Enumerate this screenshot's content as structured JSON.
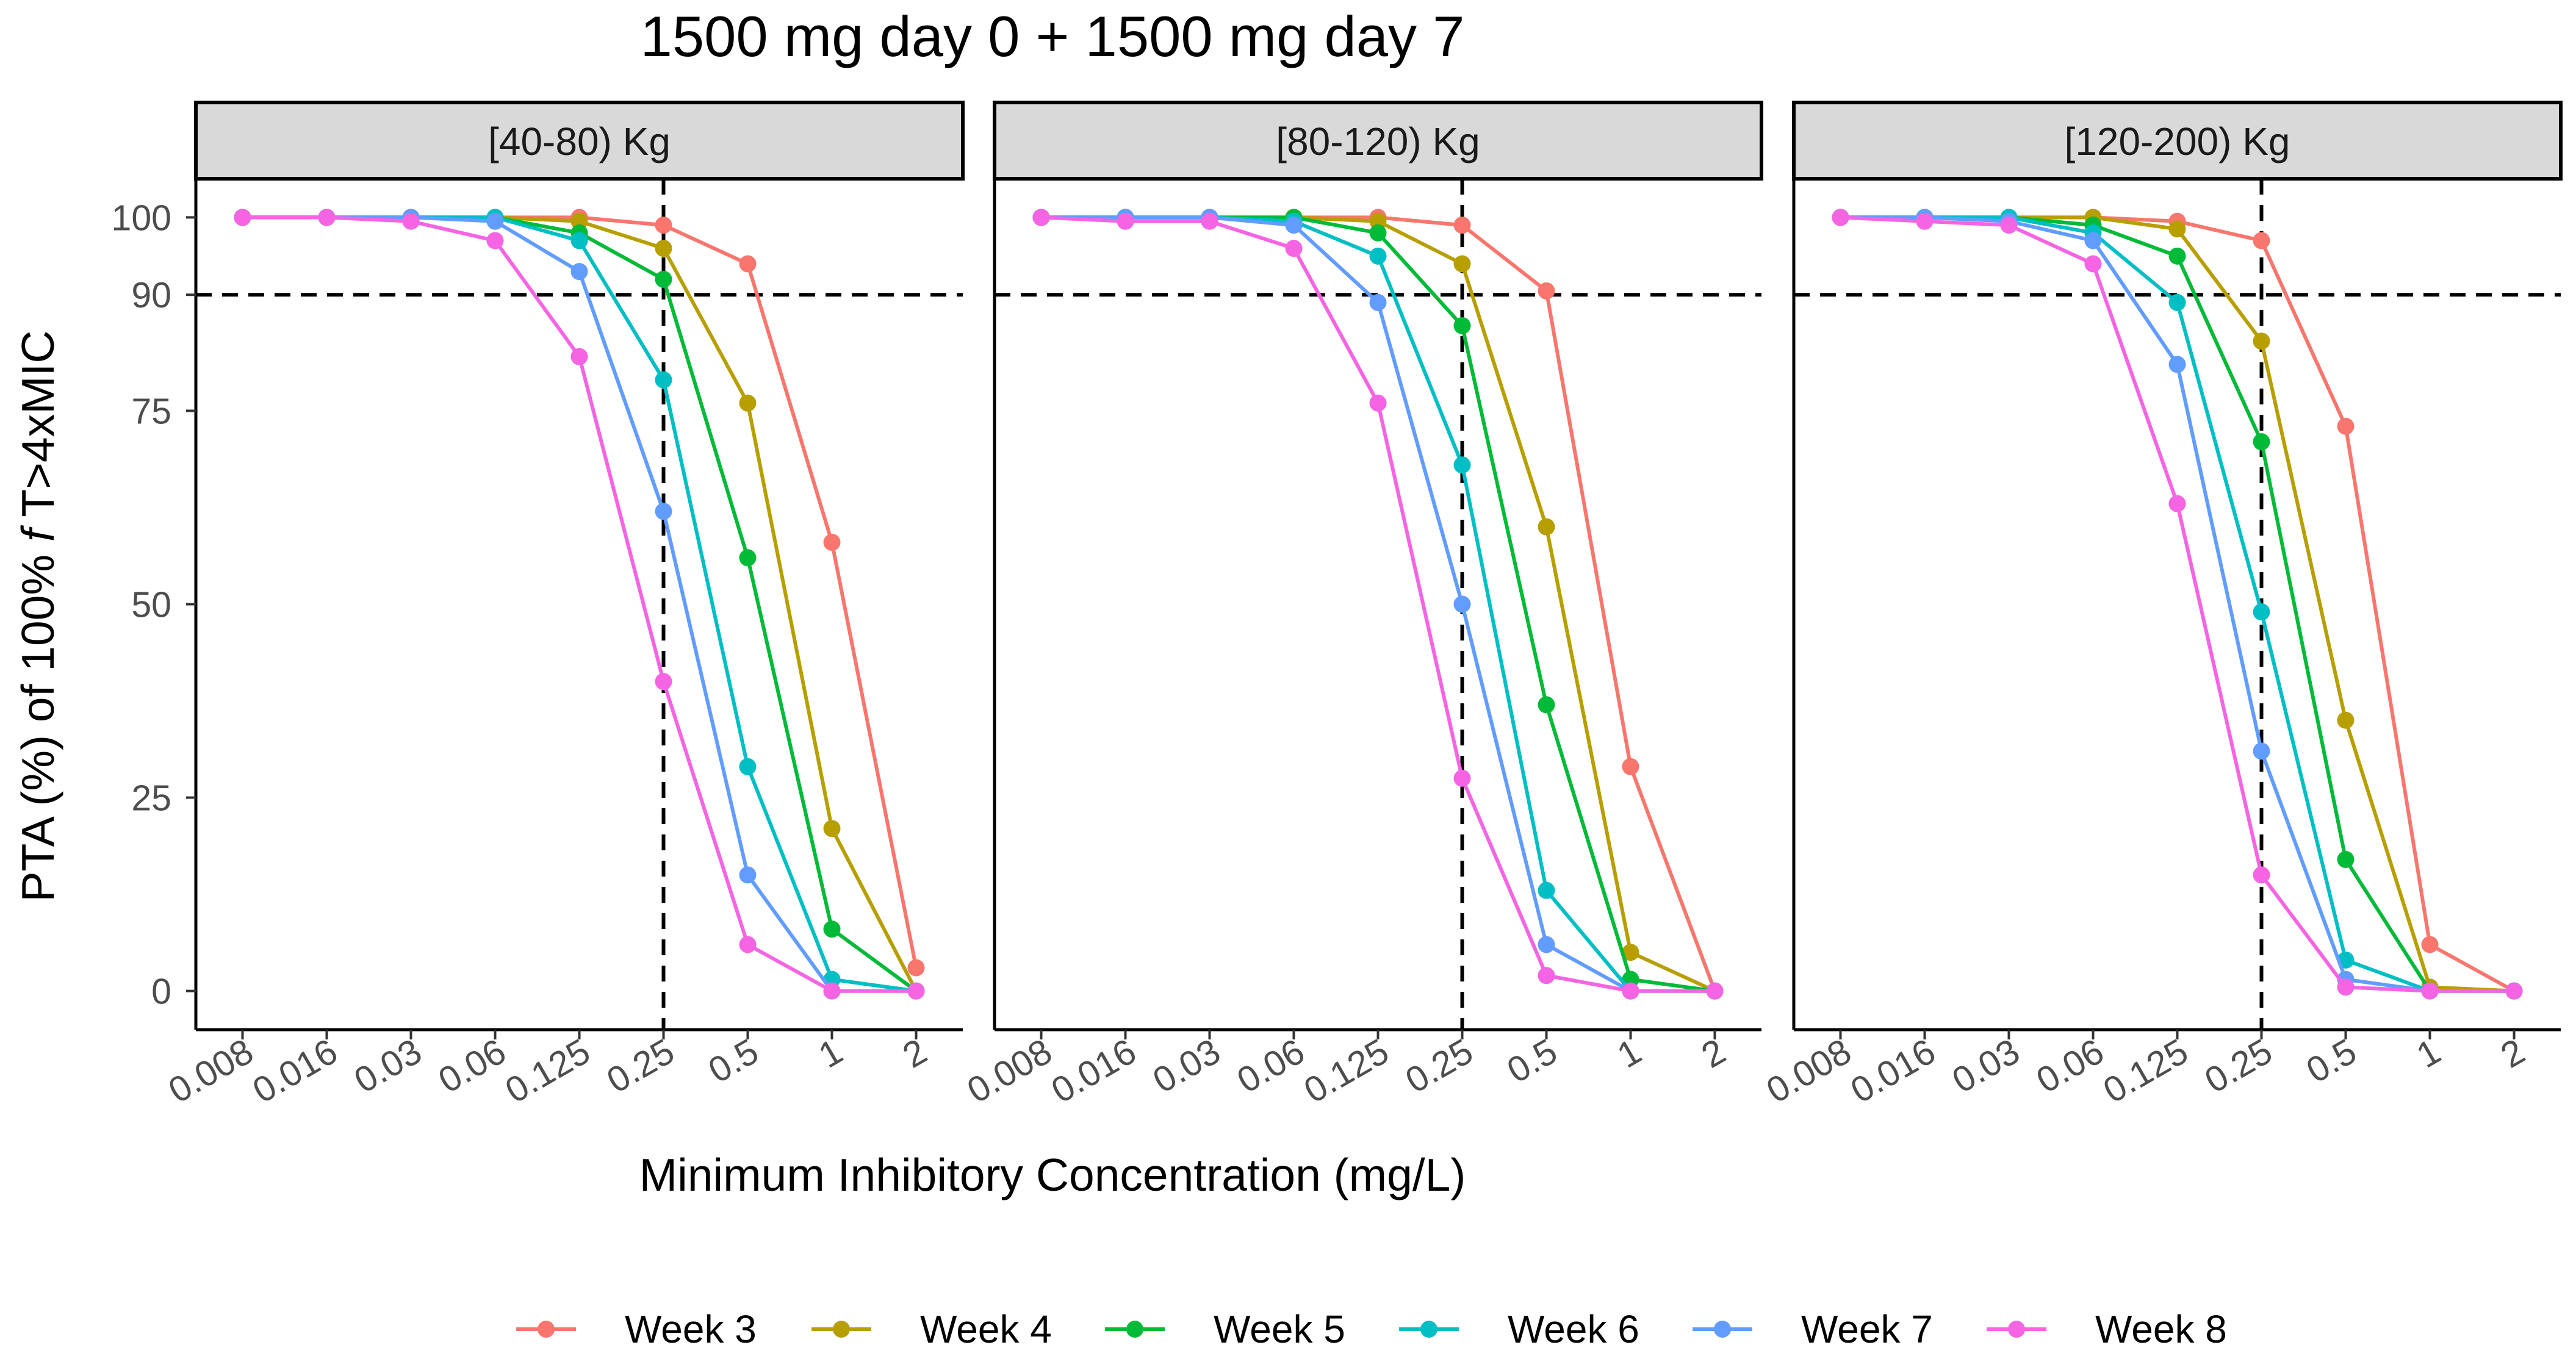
{
  "chart_data": {
    "type": "line",
    "title": "1500 mg day 0 + 1500 mg day 7",
    "xlabel": "Minimum Inhibitory Concentration (mg/L)",
    "ylabel_prefix": "PTA (%) of 100% ",
    "ylabel_italic": "f",
    "ylabel_suffix": " T>4xMIC",
    "categories": [
      "0.008",
      "0.016",
      "0.03",
      "0.06",
      "0.125",
      "0.25",
      "0.5",
      "1",
      "2"
    ],
    "y_ticks": [
      0,
      25,
      50,
      75,
      90,
      100
    ],
    "ylim": [
      -5,
      105
    ],
    "reference_lines": {
      "y": 90,
      "x": "0.25"
    },
    "legend_position": "bottom",
    "panels": [
      {
        "label": "[40-80) Kg",
        "series": [
          {
            "name": "Week 3",
            "color": "#F8766D",
            "values": [
              100,
              100,
              100,
              100,
              100,
              99,
              94,
              58,
              3
            ]
          },
          {
            "name": "Week 4",
            "color": "#B79F00",
            "values": [
              100,
              100,
              100,
              100,
              99.5,
              96,
              76,
              21,
              0
            ]
          },
          {
            "name": "Week 5",
            "color": "#00BA38",
            "values": [
              100,
              100,
              100,
              100,
              98,
              92,
              56,
              8,
              0
            ]
          },
          {
            "name": "Week 6",
            "color": "#00BFC4",
            "values": [
              100,
              100,
              100,
              100,
              97,
              79,
              29,
              1.5,
              0
            ]
          },
          {
            "name": "Week 7",
            "color": "#619CFF",
            "values": [
              100,
              100,
              100,
              99.5,
              93,
              62,
              15,
              0,
              0
            ]
          },
          {
            "name": "Week 8",
            "color": "#F564E3",
            "values": [
              100,
              100,
              99.5,
              97,
              82,
              40,
              6,
              0,
              0
            ]
          }
        ]
      },
      {
        "label": "[80-120) Kg",
        "series": [
          {
            "name": "Week 3",
            "color": "#F8766D",
            "values": [
              100,
              100,
              100,
              100,
              100,
              99,
              90.5,
              29,
              0
            ]
          },
          {
            "name": "Week 4",
            "color": "#B79F00",
            "values": [
              100,
              100,
              100,
              100,
              99.5,
              94,
              60,
              5,
              0
            ]
          },
          {
            "name": "Week 5",
            "color": "#00BA38",
            "values": [
              100,
              100,
              100,
              100,
              98,
              86,
              37,
              1.5,
              0
            ]
          },
          {
            "name": "Week 6",
            "color": "#00BFC4",
            "values": [
              100,
              100,
              100,
              99.5,
              95,
              68,
              13,
              0,
              0
            ]
          },
          {
            "name": "Week 7",
            "color": "#619CFF",
            "values": [
              100,
              100,
              100,
              99,
              89,
              50,
              6,
              0,
              0
            ]
          },
          {
            "name": "Week 8",
            "color": "#F564E3",
            "values": [
              100,
              99.5,
              99.5,
              96,
              76,
              27.5,
              2,
              0,
              0
            ]
          }
        ]
      },
      {
        "label": "[120-200) Kg",
        "series": [
          {
            "name": "Week 3",
            "color": "#F8766D",
            "values": [
              100,
              100,
              100,
              100,
              99.5,
              97,
              73,
              6,
              0
            ]
          },
          {
            "name": "Week 4",
            "color": "#B79F00",
            "values": [
              100,
              100,
              100,
              100,
              98.5,
              84,
              35,
              0.5,
              0
            ]
          },
          {
            "name": "Week 5",
            "color": "#00BA38",
            "values": [
              100,
              100,
              100,
              99,
              95,
              71,
              17,
              0,
              0
            ]
          },
          {
            "name": "Week 6",
            "color": "#00BFC4",
            "values": [
              100,
              100,
              100,
              98,
              89,
              49,
              4,
              0,
              0
            ]
          },
          {
            "name": "Week 7",
            "color": "#619CFF",
            "values": [
              100,
              100,
              99.5,
              97,
              81,
              31,
              1.5,
              0,
              0
            ]
          },
          {
            "name": "Week 8",
            "color": "#F564E3",
            "values": [
              100,
              99.5,
              99,
              94,
              63,
              15,
              0.5,
              0,
              0
            ]
          }
        ]
      }
    ],
    "legend": [
      {
        "name": "Week 3",
        "color": "#F8766D"
      },
      {
        "name": "Week 4",
        "color": "#B79F00"
      },
      {
        "name": "Week 5",
        "color": "#00BA38"
      },
      {
        "name": "Week 6",
        "color": "#00BFC4"
      },
      {
        "name": "Week 7",
        "color": "#619CFF"
      },
      {
        "name": "Week 8",
        "color": "#F564E3"
      }
    ]
  }
}
